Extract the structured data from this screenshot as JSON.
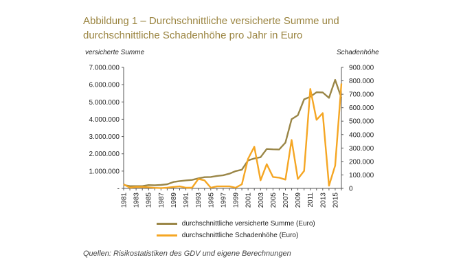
{
  "colors": {
    "series1": "#9a8647",
    "series2": "#f5a623",
    "title": "#9a8440",
    "axis": "#555555"
  },
  "chart_data": {
    "type": "line",
    "title_line1": "Abbildung 1 – Durchschnittliche versicherte Summe und",
    "title_line2": "durchschnittliche Schadenhöhe pro Jahr in Euro",
    "ylabel_left": "versicherte Summe",
    "ylabel_right": "Schadenhöhe",
    "x": [
      1981,
      1982,
      1983,
      1984,
      1985,
      1986,
      1987,
      1988,
      1989,
      1990,
      1991,
      1992,
      1993,
      1994,
      1995,
      1996,
      1997,
      1998,
      1999,
      2000,
      2001,
      2002,
      2003,
      2004,
      2005,
      2006,
      2007,
      2008,
      2009,
      2010,
      2011,
      2012,
      2013,
      2014,
      2015,
      2016
    ],
    "x_tick_labels": [
      "1981",
      "1983",
      "1985",
      "1987",
      "1989",
      "1991",
      "1993",
      "1995",
      "1997",
      "1999",
      "2001",
      "2003",
      "2005",
      "2007",
      "2009",
      "2011",
      "2013",
      "2015"
    ],
    "left_ticks": [
      "-",
      "1.000.000",
      "2.000.000",
      "3.000.000",
      "4.000.000",
      "5.000.000",
      "6.000.000",
      "7.000.000"
    ],
    "right_ticks": [
      "0",
      "100.000",
      "200.000",
      "300.000",
      "400.000",
      "500.000",
      "600.000",
      "700.000",
      "800.000",
      "900.000"
    ],
    "ylim_left": [
      0,
      7000000
    ],
    "ylim_right": [
      0,
      900000
    ],
    "series": [
      {
        "name": "durchschnittliche versicherte Summe (Euro)",
        "axis": "left",
        "values": [
          200000,
          130000,
          130000,
          130000,
          190000,
          180000,
          200000,
          240000,
          370000,
          420000,
          460000,
          490000,
          580000,
          650000,
          660000,
          720000,
          760000,
          850000,
          1000000,
          1080000,
          1620000,
          1730000,
          1800000,
          2280000,
          2260000,
          2250000,
          2650000,
          4000000,
          4230000,
          5150000,
          5300000,
          5560000,
          5550000,
          5240000,
          6280000,
          5230000
        ]
      },
      {
        "name": "durchschnittliche Schadenhöhe (Euro)",
        "axis": "right",
        "values": [
          30000,
          5000,
          10000,
          10000,
          8000,
          4000,
          2000,
          5000,
          10000,
          15000,
          5000,
          5000,
          70000,
          60000,
          5000,
          15000,
          15000,
          15000,
          5000,
          30000,
          220000,
          310000,
          60000,
          180000,
          85000,
          80000,
          65000,
          360000,
          70000,
          130000,
          740000,
          510000,
          560000,
          20000,
          170000,
          780000
        ]
      }
    ]
  },
  "source_text": "Quellen: Risikostatistiken des GDV und eigene Berechnungen"
}
